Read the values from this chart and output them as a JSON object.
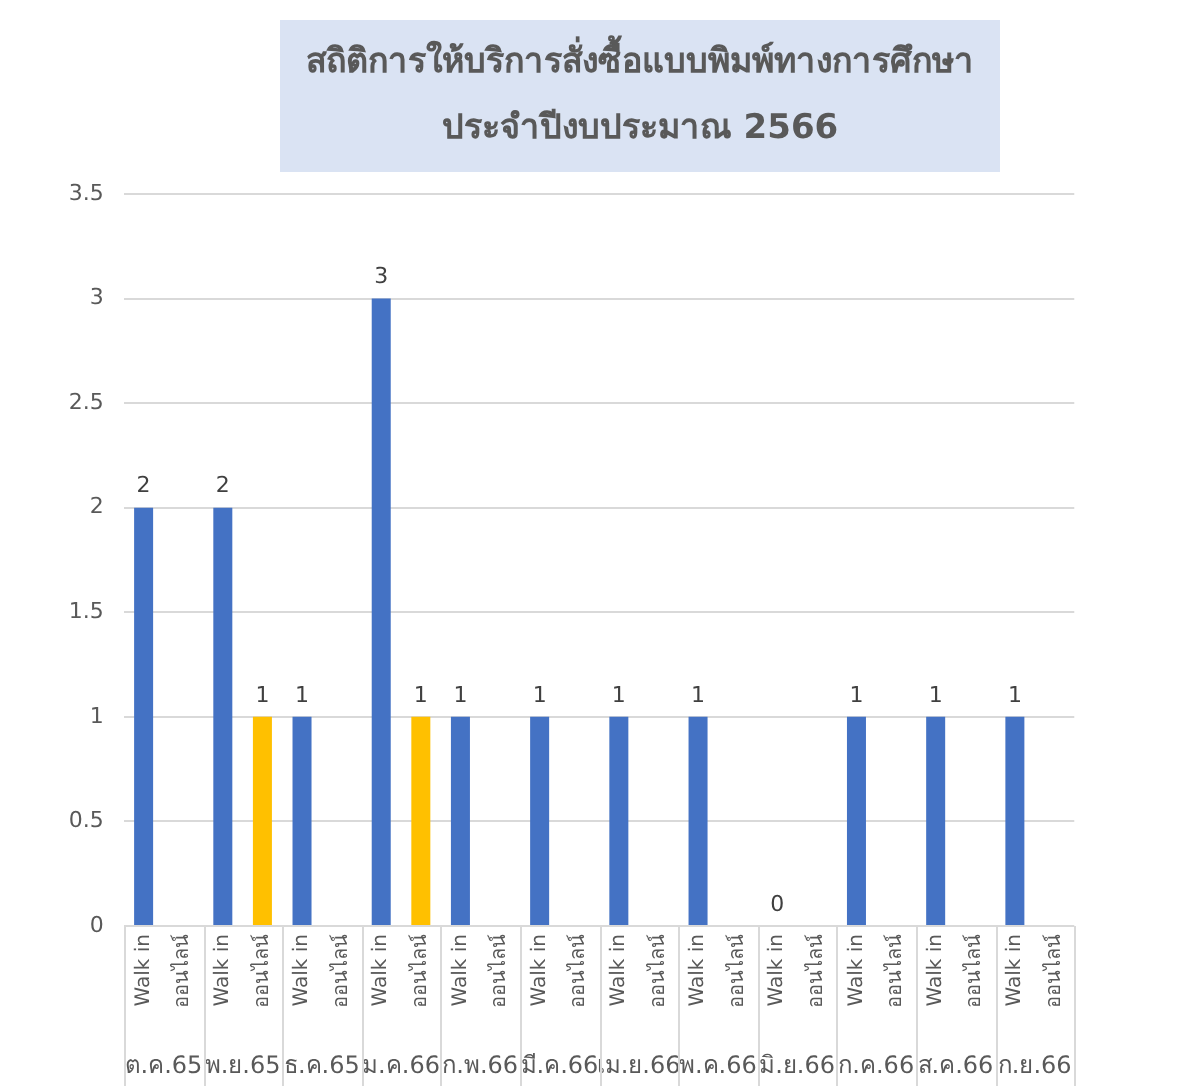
{
  "chart_data": {
    "type": "bar",
    "title": "สถิติการให้บริการสั่งซื้อแบบพิมพ์ทางการศึกษา\nประจำปีงบประมาณ 2566",
    "categories": [
      "ต.ค.65",
      "พ.ย.65",
      "ธ.ค.65",
      "ม.ค.66",
      "ก.พ.66",
      "มี.ค.66",
      "เม.ย.66",
      "พ.ค.66",
      "มิ.ย.66",
      "ก.ค.66",
      "ส.ค.66",
      "ก.ย.66"
    ],
    "series": [
      {
        "name": "Walk in",
        "color": "#4472c4",
        "values": [
          2,
          2,
          1,
          3,
          1,
          1,
          1,
          1,
          0,
          1,
          1,
          1
        ]
      },
      {
        "name": "ออนไลน์",
        "color": "#ffc000",
        "values": [
          null,
          1,
          null,
          1,
          null,
          null,
          null,
          null,
          null,
          null,
          null,
          null
        ]
      }
    ],
    "ylim": [
      0,
      3.5
    ],
    "yticks": [
      0,
      0.5,
      1,
      1.5,
      2,
      2.5,
      3,
      3.5
    ],
    "grid": "y",
    "data_labels": true,
    "legend": false
  }
}
